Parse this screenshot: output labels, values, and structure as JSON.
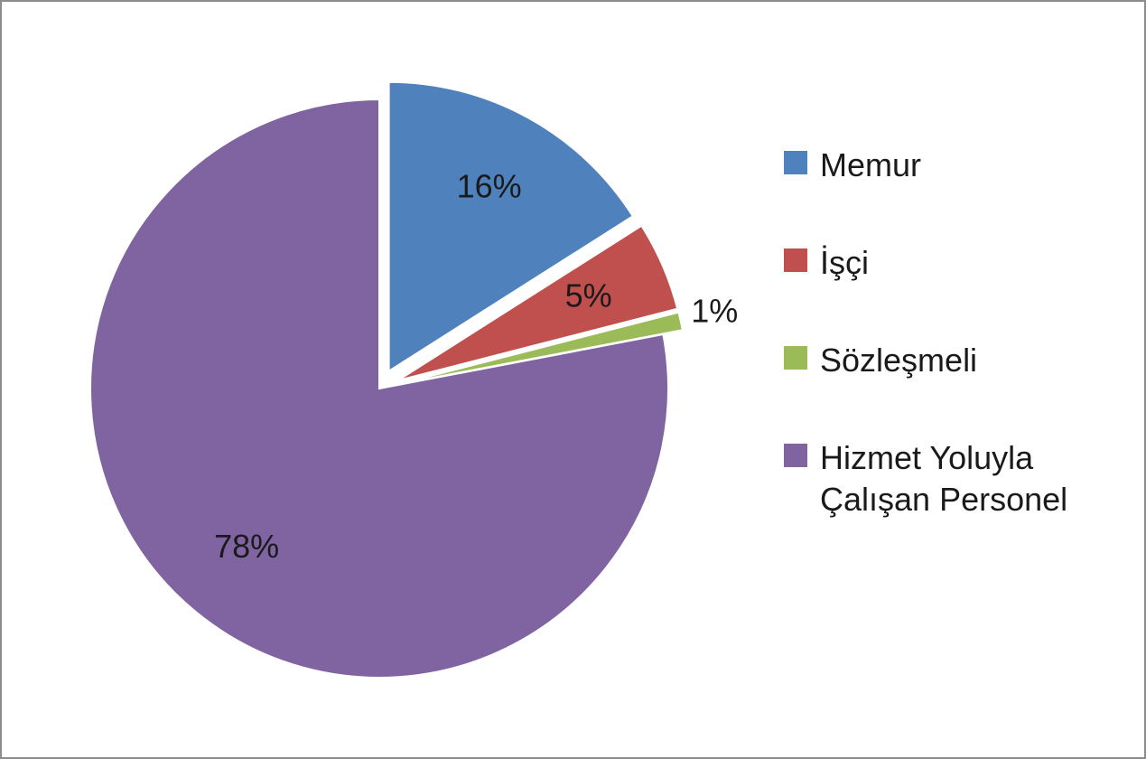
{
  "chart_data": {
    "type": "pie",
    "categories": [
      "Memur",
      "İşçi",
      "Sözleşmeli",
      "Hizmet Yoluyla Çalışan Personel"
    ],
    "values": [
      16,
      5,
      1,
      78
    ],
    "value_labels": [
      "16%",
      "5%",
      "1%",
      "78%"
    ],
    "colors": [
      "#4f81bd",
      "#c0504d",
      "#9bbb59",
      "#8064a2"
    ],
    "exploded": [
      true,
      true,
      true,
      false
    ],
    "legend": "right"
  }
}
